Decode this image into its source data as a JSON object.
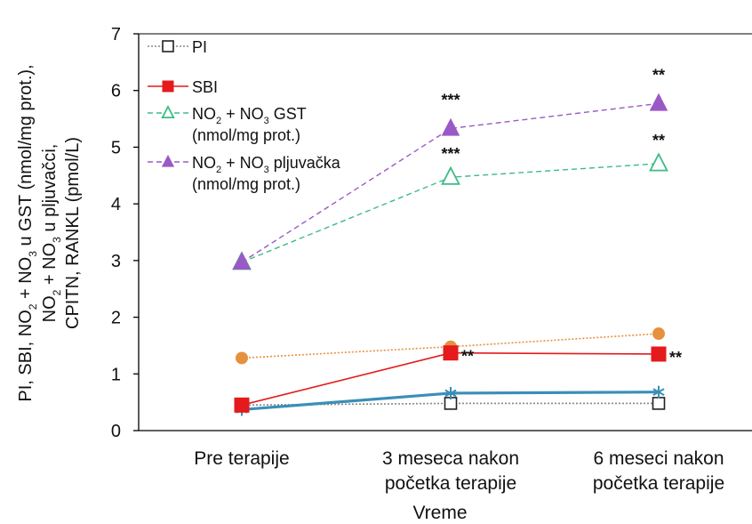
{
  "chart_data": {
    "type": "line",
    "categories": [
      "Pre terapije",
      "3 meseca nakon početka terapije",
      "6 meseci nakon početka terapije"
    ],
    "category_lines": [
      [
        "Pre terapije"
      ],
      [
        "3 meseca nakon",
        "početka terapije"
      ],
      [
        "6 meseci nakon",
        "početka terapije"
      ]
    ],
    "xlabel": "Vreme",
    "ylabel_lines": [
      [
        {
          "t": "PI, SBI, NO"
        },
        {
          "t": "2",
          "sub": true
        },
        {
          "t": " + NO"
        },
        {
          "t": "3",
          "sub": true
        },
        {
          "t": " u GST (nmol/mg prot.),"
        }
      ],
      [
        {
          "t": "NO"
        },
        {
          "t": "2",
          "sub": true
        },
        {
          "t": " + NO"
        },
        {
          "t": "3",
          "sub": true
        },
        {
          "t": " u pljuvačci,"
        }
      ],
      [
        {
          "t": "CPITN, RANKL (pmol/L)"
        }
      ]
    ],
    "ylim": [
      0,
      7
    ],
    "yticks": [
      0,
      1,
      2,
      3,
      4,
      5,
      6,
      7
    ],
    "series": [
      {
        "key": "pi",
        "values": [
          0.45,
          0.48,
          0.48
        ],
        "color": "#888888",
        "marker": "square-open",
        "line": "dotted"
      },
      {
        "key": "sbi",
        "values": [
          0.45,
          1.37,
          1.35
        ],
        "color": "#e41a1c",
        "marker": "square-filled",
        "line": "solid"
      },
      {
        "key": "gst",
        "values": [
          2.97,
          4.47,
          4.71
        ],
        "color": "#3dbb85",
        "marker": "triangle-open",
        "line": "dashed"
      },
      {
        "key": "salivary",
        "values": [
          2.97,
          5.33,
          5.77
        ],
        "color": "#9b59c7",
        "marker": "triangle-filled",
        "line": "dashed"
      },
      {
        "key": "orange",
        "values": [
          1.28,
          1.48,
          1.71
        ],
        "color": "#e69140",
        "marker": "circle-filled",
        "line": "dotted"
      },
      {
        "key": "teal",
        "values": [
          0.37,
          0.66,
          0.68
        ],
        "color": "#3a8fb7",
        "marker": "star",
        "line": "solid-thick"
      }
    ],
    "legend": {
      "position": "top-left",
      "entries": [
        {
          "series": "pi",
          "lines": [
            [
              {
                "t": "PI"
              }
            ]
          ]
        },
        {
          "series": "sbi",
          "lines": [
            [
              {
                "t": "SBI"
              }
            ]
          ]
        },
        {
          "series": "gst",
          "lines": [
            [
              {
                "t": "NO"
              },
              {
                "t": "2",
                "sub": true
              },
              {
                "t": " + NO"
              },
              {
                "t": "3",
                "sub": true
              },
              {
                "t": " GST"
              }
            ],
            [
              {
                "t": "(nmol/mg prot.)"
              }
            ]
          ]
        },
        {
          "series": "salivary",
          "lines": [
            [
              {
                "t": "NO"
              },
              {
                "t": "2",
                "sub": true
              },
              {
                "t": " + NO"
              },
              {
                "t": "3",
                "sub": true
              },
              {
                "t": " pljuvačka"
              }
            ],
            [
              {
                "t": "(nmol/mg prot.)"
              }
            ]
          ]
        }
      ]
    },
    "annotations": [
      {
        "text": "***",
        "series": "salivary",
        "category": 1,
        "place": "above-far"
      },
      {
        "text": "***",
        "series": "gst",
        "category": 1,
        "place": "above"
      },
      {
        "text": "**",
        "series": "salivary",
        "category": 2,
        "place": "above-far"
      },
      {
        "text": "**",
        "series": "gst",
        "category": 2,
        "place": "above"
      },
      {
        "text": "**",
        "series": "sbi",
        "category": 1,
        "place": "right"
      },
      {
        "text": "**",
        "series": "sbi",
        "category": 2,
        "place": "right"
      }
    ]
  }
}
